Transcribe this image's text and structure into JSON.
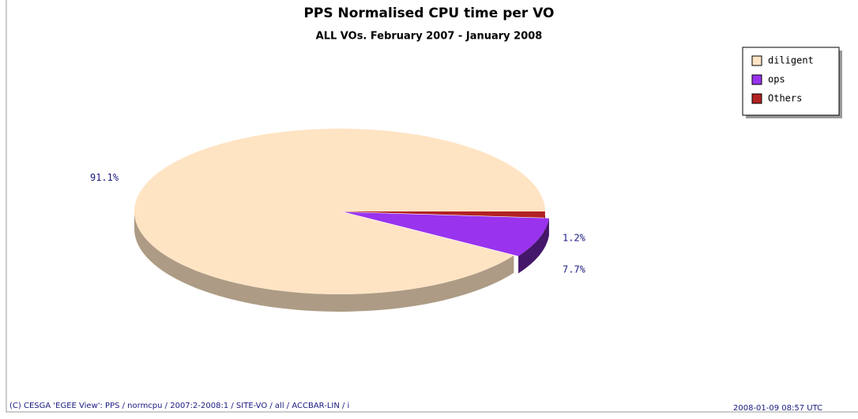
{
  "chart_data": {
    "type": "pie",
    "title": "PPS Normalised CPU time per VO",
    "subtitle": "ALL VOs. February 2007 - January 2008",
    "series": [
      {
        "name": "diligent",
        "color": "#ffe4c4"
      },
      {
        "name": "ops",
        "color": "#9933ee"
      },
      {
        "name": "Others",
        "color": "#b22222"
      }
    ],
    "values": [
      91.1,
      7.7,
      1.2
    ],
    "value_labels": [
      "91.1%",
      "7.7%",
      "1.2%"
    ],
    "legend": "top-right",
    "footer": "(C) CESGA 'EGEE View': PPS / normcpu / 2007:2-2008:1 / SITE-VO / all / ACCBAR-LIN / i",
    "timestamp": "2008-01-09 08:57 UTC"
  }
}
